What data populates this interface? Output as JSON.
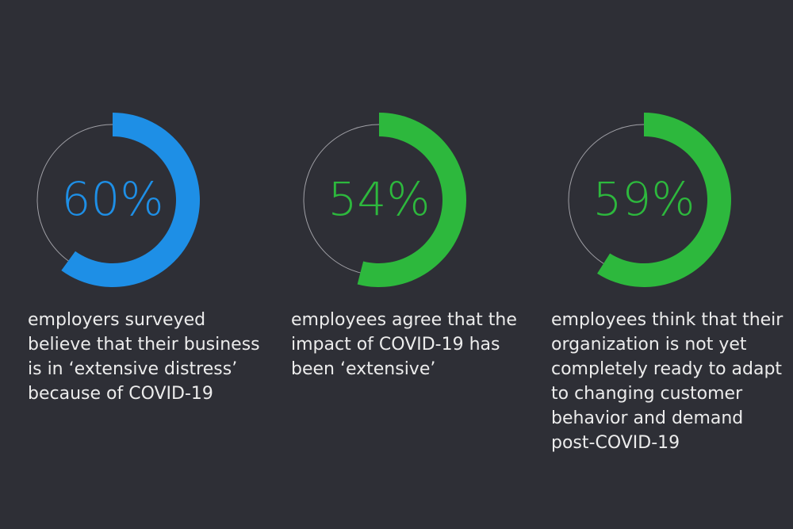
{
  "chart_data": [
    {
      "type": "donut",
      "values": [
        60
      ],
      "value_labels": [
        "60%"
      ],
      "color": "#1e8fe6",
      "caption": "employers surveyed believe that their business is in ‘extensive distress’ because of COVID-19"
    },
    {
      "type": "donut",
      "values": [
        54
      ],
      "value_labels": [
        "54%"
      ],
      "color": "#2db83d",
      "caption": "employees agree that the impact of COVID-19 has been ‘extensive’"
    },
    {
      "type": "donut",
      "values": [
        59
      ],
      "value_labels": [
        "59%"
      ],
      "color": "#2db83d",
      "caption": "employees think that their organization is not yet completely ready to adapt to changing customer behavior and demand post-COVID-19"
    }
  ]
}
